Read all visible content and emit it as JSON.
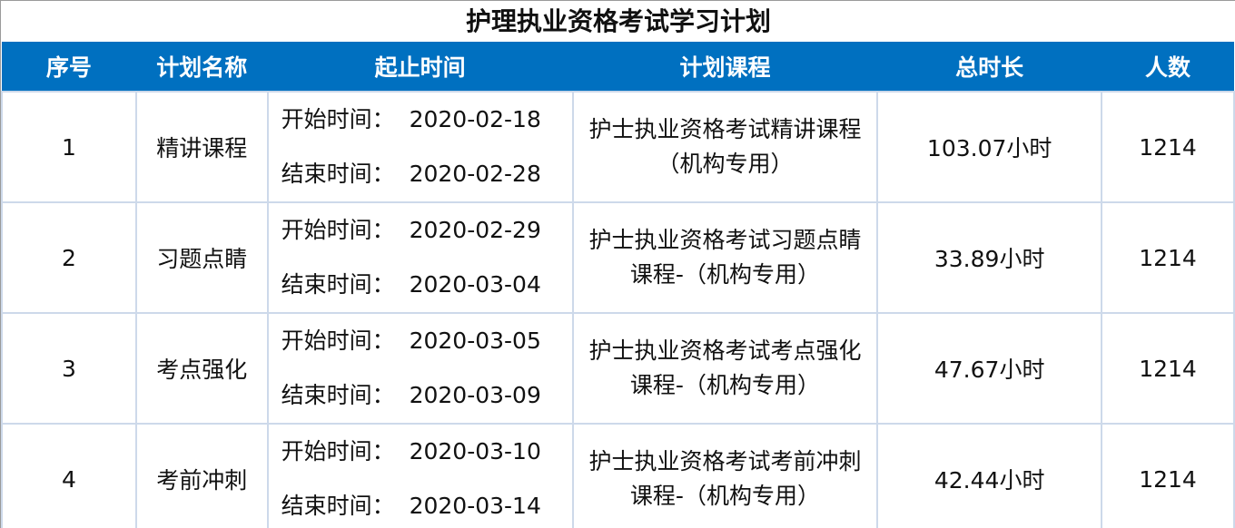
{
  "title": "护理执业资格考试学习计划",
  "header_color": "#0070c0",
  "columns": [
    "序号",
    "计划名称",
    "起止时间",
    "计划课程",
    "总时长",
    "人数"
  ],
  "rows": [
    {
      "no": "1",
      "name": "精讲课程",
      "start": "开始时间：  2020-02-18",
      "end": "结束时间：  2020-02-28",
      "course": "护士执业资格考试精讲课程（机构专用）",
      "duration": "103.07小时",
      "count": "1214"
    },
    {
      "no": "2",
      "name": "习题点睛",
      "start": "开始时间：  2020-02-29",
      "end": "结束时间：  2020-03-04",
      "course": "护士执业资格考试习题点睛课程-（机构专用）",
      "duration": "33.89小时",
      "count": "1214"
    },
    {
      "no": "3",
      "name": "考点强化",
      "start": "开始时间：  2020-03-05",
      "end": "结束时间：  2020-03-09",
      "course": "护士执业资格考试考点强化课程-（机构专用）",
      "duration": "47.67小时",
      "count": "1214"
    },
    {
      "no": "4",
      "name": "考前冲刺",
      "start": "开始时间：  2020-03-10",
      "end": "结束时间：  2020-03-14",
      "course": "护士执业资格考试考前冲刺课程-（机构专用）",
      "duration": "42.44小时",
      "count": "1214"
    }
  ]
}
